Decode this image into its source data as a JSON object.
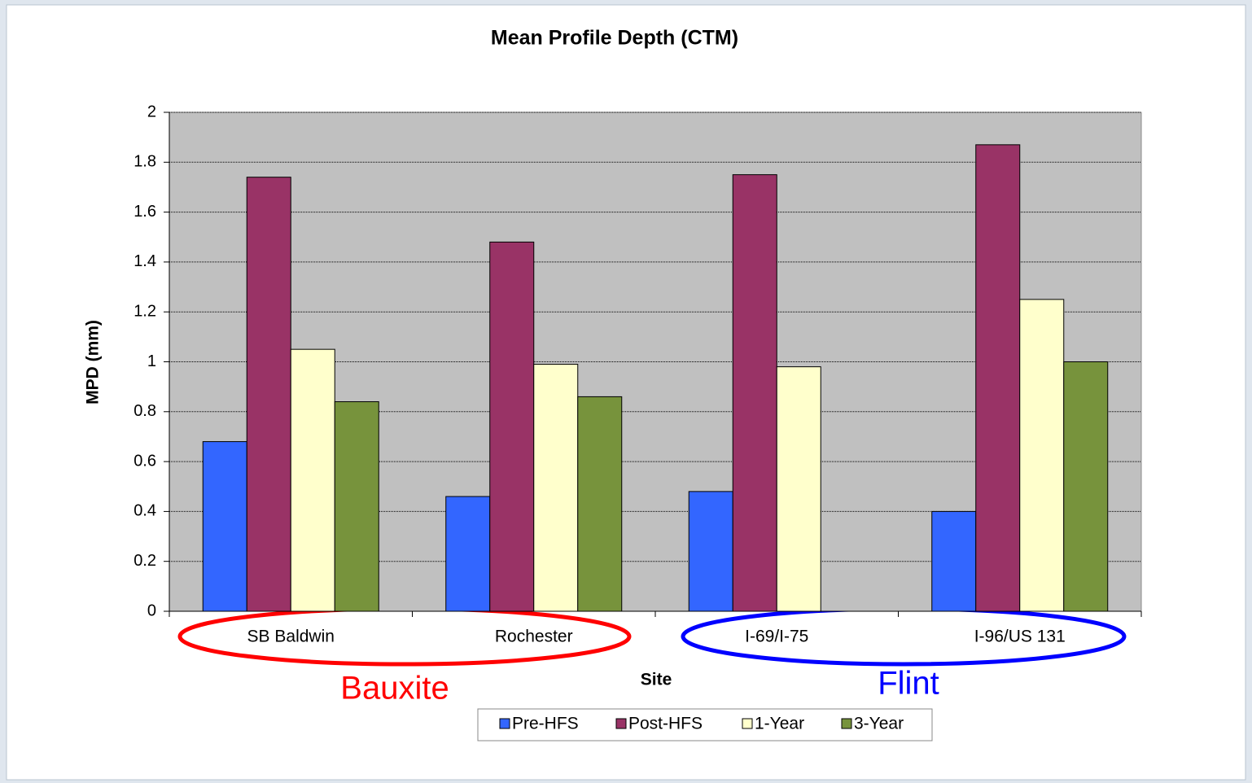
{
  "chart_data": {
    "type": "bar",
    "title": "Mean Profile Depth (CTM)",
    "x_label": "Site",
    "y_label": "MPD (mm)",
    "categories": [
      "SB Baldwin",
      "Rochester",
      "I-69/I-75",
      "I-96/US 131"
    ],
    "series": [
      {
        "name": "Pre-HFS",
        "color": "#3366ff",
        "values": [
          0.68,
          0.46,
          0.48,
          0.4
        ]
      },
      {
        "name": "Post-HFS",
        "color": "#993366",
        "values": [
          1.74,
          1.48,
          1.75,
          1.87
        ]
      },
      {
        "name": "1-Year",
        "color": "#ffffcc",
        "values": [
          1.05,
          0.99,
          0.98,
          1.25
        ]
      },
      {
        "name": "3-Year",
        "color": "#77933c",
        "values": [
          0.84,
          0.86,
          null,
          1.0
        ]
      }
    ],
    "ylim": [
      0,
      2
    ],
    "yticks": [
      0,
      0.2,
      0.4,
      0.6,
      0.8,
      1,
      1.2,
      1.4,
      1.6,
      1.8,
      2
    ],
    "grid": true,
    "legend": "bottom",
    "plot_background": "#c0c0c0",
    "annotations": [
      {
        "text": "Bauxite",
        "color": "#ff0000"
      },
      {
        "text": "Flint",
        "color": "#0000ff"
      }
    ]
  }
}
